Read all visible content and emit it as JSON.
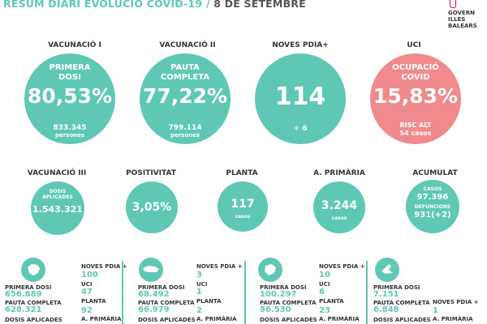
{
  "title": {
    "main": "RESUM DIARI EVOLUCIÓ COVID-19 /",
    "date": "8 DE SETEMBRE"
  },
  "logo": {
    "line1": "GOVERN",
    "line2": "ILLES",
    "line3": "BALEARS"
  },
  "top": [
    {
      "header": "VACUNACIÓ I",
      "label1": "PRIMERA",
      "label2": "DOSI",
      "value": "80,53%",
      "sub1": "833.345",
      "sub2": "persones"
    },
    {
      "header": "VACUNACIÓ II",
      "label1": "PAUTA",
      "label2": "COMPLETA",
      "value": "77,22%",
      "sub1": "799.114",
      "sub2": "persones"
    },
    {
      "header": "NOVES PDIA+",
      "value": "114",
      "sub1": "+ 6"
    },
    {
      "header": "UCI",
      "label1": "OCUPACIÓ",
      "label2": "COVID",
      "value": "15,83%",
      "sub1": "RISC ALT",
      "sub2": "54 casos"
    }
  ],
  "middle": [
    {
      "header": "VACUNACIÓ III",
      "label1": "DOSIS",
      "label2": "APLICADES",
      "value": "1.543.321"
    },
    {
      "header": "POSITIVITAT",
      "value": "3,05%"
    },
    {
      "header": "PLANTA",
      "value": "117",
      "sub": "casos"
    },
    {
      "header": "A. PRIMÀRIA",
      "value": "3.244",
      "sub": "casos"
    },
    {
      "header": "ACUMULAT",
      "label1": "CASOS",
      "value1": "97.396",
      "label2": "DEFUNCIONS",
      "value2": "931(+2)"
    }
  ],
  "islands": [
    {
      "name_icon": "mallorca-icon",
      "primera_label": "PRIMERA DOSI",
      "primera": "656.889",
      "pauta_label": "PAUTA COMPLETA",
      "pauta": "628.321",
      "dosis_label": "DOSIS APLICADES",
      "noves_label": "NOVES PDIA +",
      "noves": "100",
      "uci_label": "UCI",
      "uci": "47",
      "planta_label": "PLANTA",
      "planta": "92",
      "ap_label": "A. PRIMÀRIA"
    },
    {
      "name_icon": "menorca-icon",
      "primera_label": "PRIMERA DOSI",
      "primera": "68.492",
      "pauta_label": "PAUTA COMPLETA",
      "pauta": "66.979",
      "dosis_label": "DOSIS APLICADES",
      "noves_label": "NOVES PDIA +",
      "noves": "3",
      "uci_label": "UCI",
      "uci": "1",
      "planta_label": "PLANTA",
      "planta": "2",
      "ap_label": "A. PRIMÀRIA"
    },
    {
      "name_icon": "eivissa-icon",
      "primera_label": "PRIMERA DOSI",
      "primera": "100.297",
      "pauta_label": "PAUTA COMPLETA",
      "pauta": "96.530",
      "dosis_label": "DOSIS APLICADES",
      "noves_label": "NOVES PDIA +",
      "noves": "10",
      "uci_label": "UCI",
      "uci": "6",
      "planta_label": "PLANTA",
      "planta": "23",
      "ap_label": "A. PRIMÀRIA"
    },
    {
      "name_icon": "formentera-icon",
      "primera_label": "PRIMERA DOSI",
      "primera": "7.151",
      "pauta_label": "PAUTA COMPLETA",
      "pauta": "6.848",
      "dosis_label": "DOSIS APLICADES",
      "noves_label": "NOVES PDIA +",
      "noves": "1",
      "ap_label": "A. PRIMÀRIA"
    }
  ],
  "colors": {
    "teal": "#5ec8b5",
    "red": "#f08a8c",
    "text": "#333333"
  }
}
